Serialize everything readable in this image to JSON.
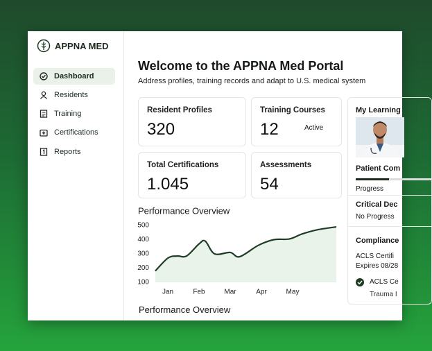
{
  "sidebar": {
    "brand": "APPNA MED",
    "nav": [
      "Dashboard",
      "Residents",
      "Training",
      "Certifications",
      "Reports"
    ]
  },
  "header": {
    "title": "Welcome to the APPNA Med Portal",
    "subtitle": "Address profiles, training records and adapt to U.S. medical  system"
  },
  "cards": [
    {
      "label": "Resident Profiles",
      "value": "320"
    },
    {
      "label": "Training Courses",
      "value": "12",
      "note": "Active"
    },
    {
      "label": "Total Certifications",
      "value": "1.045"
    },
    {
      "label": "Assessments",
      "value": "54"
    }
  ],
  "learning": {
    "title": "My Learning",
    "course": "Patient Com",
    "course_status": "Progress",
    "course2": "Critical Dec",
    "course2_status": "No Progress",
    "compliance": "Compliance",
    "item1": "ACLS Certifi",
    "item1_expiry": "Expires 08/28",
    "item2": "ACLS Ce",
    "item3": "Trauma I"
  },
  "chart_data": {
    "type": "line",
    "title": "Performance Overview",
    "x": [
      -0.4,
      0,
      0.3,
      0.6,
      1,
      1.2,
      1.5,
      2,
      2.3,
      2.9,
      3.4,
      3.9,
      4.3,
      4.8,
      5.4
    ],
    "series": [
      {
        "color": "#1f3d26",
        "values": [
          180,
          270,
          285,
          285,
          370,
          390,
          300,
          310,
          280,
          360,
          400,
          405,
          440,
          470,
          490
        ]
      }
    ],
    "xlim": [
      -0.4,
      5.4
    ],
    "xticks": [
      {
        "value": 0,
        "label": "Jan"
      },
      {
        "value": 1,
        "label": "Feb"
      },
      {
        "value": 2,
        "label": "Mar"
      },
      {
        "value": 3,
        "label": "Apr"
      },
      {
        "value": 4,
        "label": "May"
      }
    ],
    "ylim": [
      100,
      500
    ],
    "yticks": [
      500,
      400,
      300,
      200,
      100
    ],
    "grid": false,
    "fill": "#e9f3e9"
  },
  "footer_title": "Performance Overview"
}
